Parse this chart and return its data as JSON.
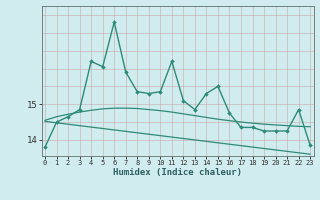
{
  "xlabel": "Humidex (Indice chaleur)",
  "x": [
    0,
    1,
    2,
    3,
    4,
    5,
    6,
    7,
    8,
    9,
    10,
    11,
    12,
    13,
    14,
    15,
    16,
    17,
    18,
    19,
    20,
    21,
    22,
    23
  ],
  "y_main": [
    13.8,
    14.5,
    14.65,
    14.85,
    16.2,
    16.05,
    17.3,
    15.9,
    15.35,
    15.3,
    15.35,
    16.2,
    15.1,
    14.85,
    15.3,
    15.5,
    14.75,
    14.35,
    14.35,
    14.25,
    14.25,
    14.25,
    14.85,
    13.85
  ],
  "y_trend1": [
    14.55,
    14.65,
    14.72,
    14.78,
    14.83,
    14.87,
    14.89,
    14.89,
    14.88,
    14.85,
    14.82,
    14.78,
    14.73,
    14.68,
    14.63,
    14.58,
    14.54,
    14.5,
    14.47,
    14.44,
    14.42,
    14.4,
    14.38,
    14.37
  ],
  "y_trend2": [
    14.52,
    14.48,
    14.44,
    14.4,
    14.36,
    14.32,
    14.28,
    14.24,
    14.2,
    14.16,
    14.12,
    14.08,
    14.04,
    14.0,
    13.96,
    13.92,
    13.88,
    13.84,
    13.8,
    13.76,
    13.72,
    13.68,
    13.64,
    13.6
  ],
  "line_color": "#2e8b77",
  "bg_color": "#d0ecee",
  "grid_color": "#b8d8da",
  "yticks": [
    14,
    15
  ],
  "ylim": [
    13.55,
    17.75
  ],
  "xlim": [
    -0.3,
    23.3
  ]
}
